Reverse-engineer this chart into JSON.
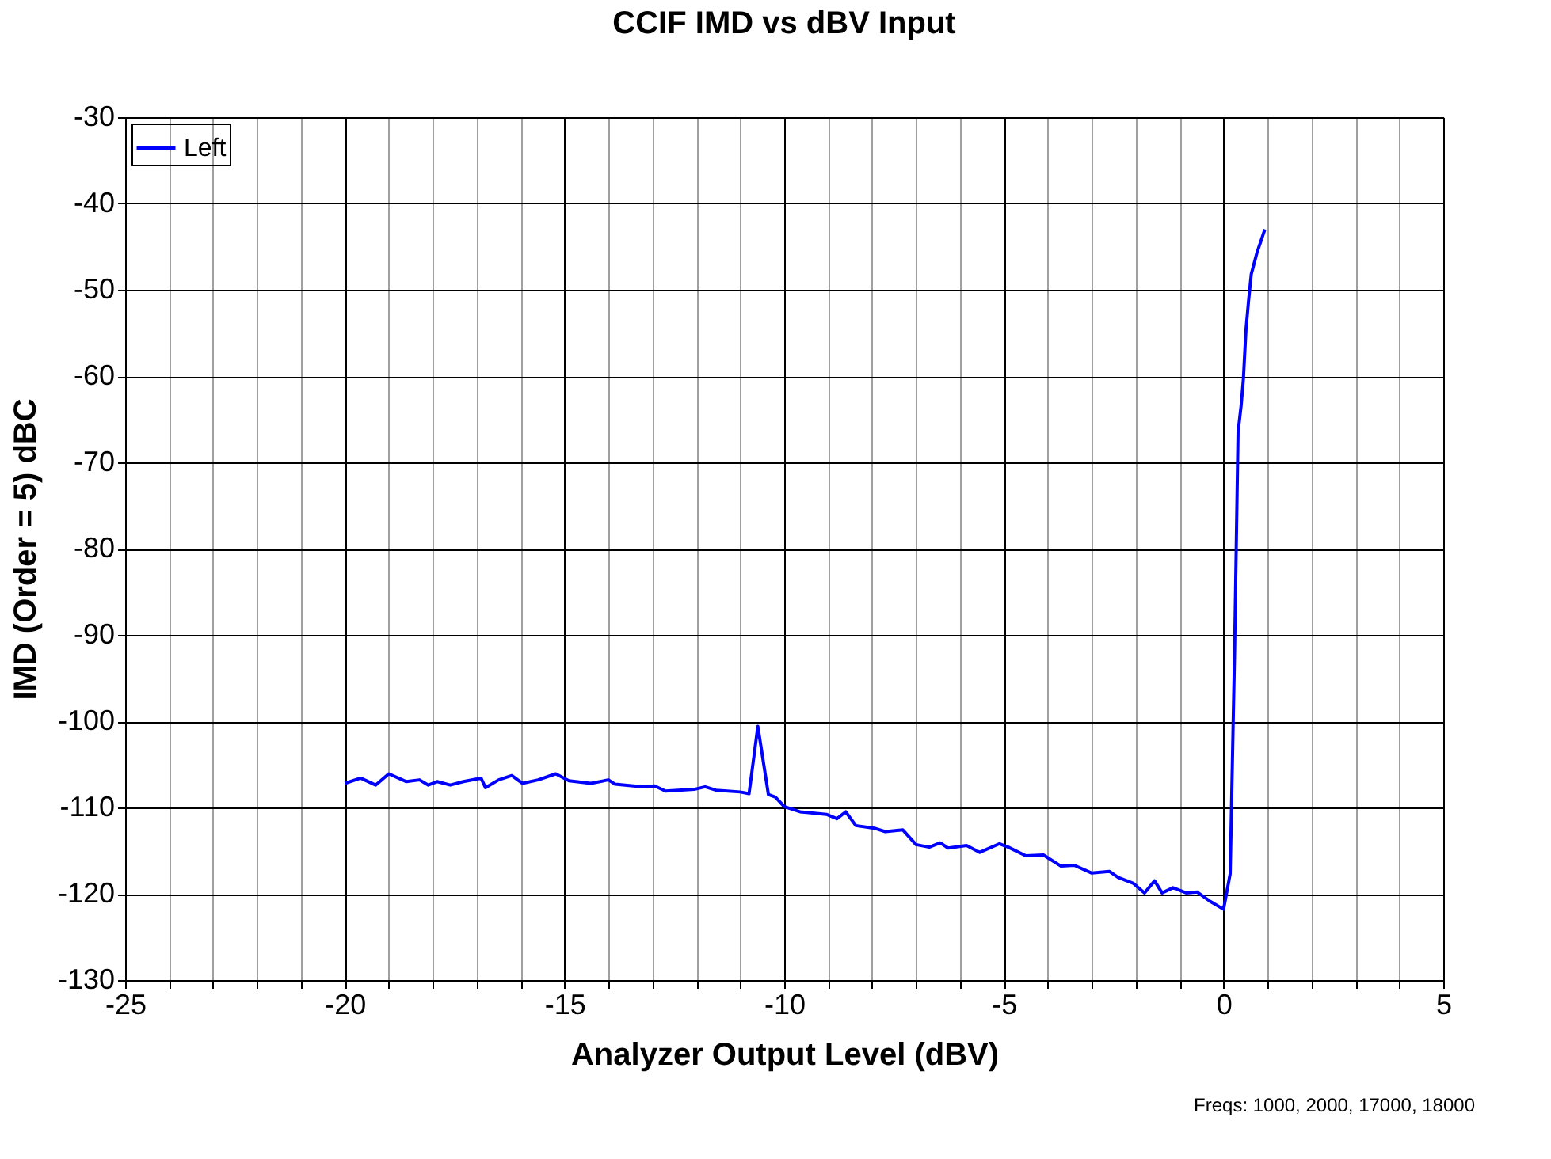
{
  "chart_data": {
    "type": "line",
    "title": "CCIF IMD vs dBV Input",
    "xlabel": "Analyzer Output Level (dBV)",
    "ylabel": "IMD (Order = 5) dBC",
    "annotations": [
      "Freqs: 1000, 2000, 17000, 18000"
    ],
    "xlim": [
      -25,
      5
    ],
    "ylim": [
      -130,
      -30
    ],
    "xticks": [
      -25,
      {
        "value": -24,
        "label": null
      },
      {
        "value": -23,
        "label": null
      },
      {
        "value": -22,
        "label": null
      },
      {
        "value": -21,
        "label": null
      },
      -20,
      {
        "value": -19,
        "label": null
      },
      {
        "value": -18,
        "label": null
      },
      {
        "value": -17,
        "label": null
      },
      {
        "value": -16,
        "label": null
      },
      -15,
      {
        "value": -14,
        "label": null
      },
      {
        "value": -13,
        "label": null
      },
      {
        "value": -12,
        "label": null
      },
      {
        "value": -11,
        "label": null
      },
      -10,
      {
        "value": -9,
        "label": null
      },
      {
        "value": -8,
        "label": null
      },
      {
        "value": -7,
        "label": null
      },
      {
        "value": -6,
        "label": null
      },
      -5,
      {
        "value": -4,
        "label": null
      },
      {
        "value": -3,
        "label": null
      },
      {
        "value": -2,
        "label": null
      },
      {
        "value": -1,
        "label": null
      },
      0,
      {
        "value": 1,
        "label": null
      },
      {
        "value": 2,
        "label": null
      },
      {
        "value": 3,
        "label": null
      },
      {
        "value": 4,
        "label": null
      },
      5
    ],
    "yticks": [
      -130,
      -120,
      -110,
      -100,
      -90,
      -80,
      -70,
      -60,
      -50,
      -40,
      -30
    ],
    "grid": true,
    "legend": "top left",
    "marker": "none",
    "line_style": "solid",
    "series": [
      {
        "name": "Left",
        "color": "#0000ff",
        "x": [
          -20,
          -19.64,
          -19.3,
          -19.0,
          -18.6,
          -18.3,
          -18.1,
          -17.9,
          -17.6,
          -17.3,
          -16.9,
          -16.8,
          -16.5,
          -16.2,
          -15.96,
          -15.6,
          -15.2,
          -14.9,
          -14.4,
          -14.0,
          -13.85,
          -13.25,
          -12.95,
          -12.7,
          -12.05,
          -11.8,
          -11.55,
          -11.0,
          -10.8,
          -10.6,
          -10.36,
          -10.2,
          -10.0,
          -9.64,
          -9.04,
          -8.8,
          -8.6,
          -8.37,
          -7.95,
          -7.7,
          -7.3,
          -7.0,
          -6.7,
          -6.45,
          -6.27,
          -5.85,
          -5.55,
          -5.1,
          -4.9,
          -4.5,
          -4.1,
          -3.7,
          -3.4,
          -3.0,
          -2.6,
          -2.4,
          -2.05,
          -1.8,
          -1.57,
          -1.4,
          -1.15,
          -0.85,
          -0.6,
          -0.3,
          0.0,
          0.15,
          0.2,
          0.25,
          0.29,
          0.33,
          0.4,
          0.45,
          0.51,
          0.57,
          0.63,
          0.76,
          0.94
        ],
        "values": [
          -107.2,
          -106.6,
          -107.4,
          -106.1,
          -107.0,
          -106.8,
          -107.4,
          -107.0,
          -107.4,
          -107.0,
          -106.6,
          -107.7,
          -106.8,
          -106.3,
          -107.2,
          -106.8,
          -106.1,
          -106.9,
          -107.2,
          -106.8,
          -107.3,
          -107.6,
          -107.5,
          -108.1,
          -107.9,
          -107.6,
          -108.0,
          -108.2,
          -108.4,
          -100.6,
          -108.5,
          -108.8,
          -109.9,
          -110.5,
          -110.8,
          -111.3,
          -110.5,
          -112.1,
          -112.4,
          -112.8,
          -112.6,
          -114.3,
          -114.6,
          -114.1,
          -114.7,
          -114.4,
          -115.2,
          -114.2,
          -114.6,
          -115.6,
          -115.5,
          -116.8,
          -116.7,
          -117.6,
          -117.4,
          -118.1,
          -118.8,
          -119.9,
          -118.5,
          -119.9,
          -119.3,
          -119.9,
          -119.8,
          -120.9,
          -121.8,
          -117.7,
          -104.9,
          -92.1,
          -79.3,
          -66.5,
          -63.4,
          -60.4,
          -54.6,
          -51.2,
          -48.2,
          -45.7,
          -43.0
        ]
      }
    ]
  }
}
